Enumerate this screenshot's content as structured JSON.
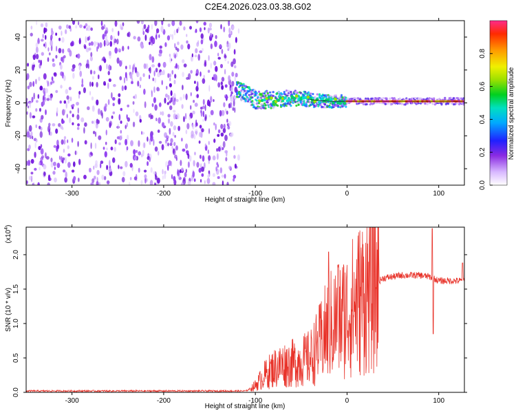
{
  "title": "C2E4.2026.023.03.38.G02",
  "colors": {
    "snr_line": "#e8332a",
    "spectrogram_noise": "#7a1fe0",
    "spectrogram_peak": "#ff1a3c",
    "axis": "#000000"
  },
  "chart_data": [
    {
      "type": "heatmap",
      "name": "spectrogram",
      "xlabel": "Height of straight line (km)",
      "ylabel": "Frequency (Hz)",
      "xlim": [
        -350,
        128
      ],
      "ylim": [
        -50,
        50
      ],
      "xticks": [
        -300,
        -200,
        -100,
        0,
        100
      ],
      "yticks": [
        -40,
        -20,
        0,
        20,
        40
      ],
      "noise_region_x": [
        -350,
        -118
      ],
      "signal_track": [
        {
          "x": -120,
          "y": 8
        },
        {
          "x": -100,
          "y": 2
        },
        {
          "x": -80,
          "y": 2
        },
        {
          "x": -60,
          "y": 3
        },
        {
          "x": -40,
          "y": 2
        },
        {
          "x": -20,
          "y": 1
        },
        {
          "x": 0,
          "y": 1
        },
        {
          "x": 40,
          "y": 1
        },
        {
          "x": 80,
          "y": 1
        },
        {
          "x": 128,
          "y": 1
        }
      ],
      "colorbar": {
        "label": "Normalized spectral amplitude",
        "ticks": [
          "0.0",
          "0.2",
          "0.4",
          "0.6",
          "0.8"
        ],
        "range": [
          0,
          1
        ]
      }
    },
    {
      "type": "line",
      "name": "snr",
      "xlabel": "Height of straight line (km)",
      "ylabel": "SNR (10 * v/v)",
      "y_exponent": "(x10",
      "y_exponent_power": "4",
      "y_exponent_close": ")",
      "xlim": [
        -350,
        128
      ],
      "ylim": [
        0,
        2.4
      ],
      "xticks": [
        -300,
        -200,
        -100,
        0,
        100
      ],
      "yticks": [
        "0.0",
        "0.5",
        "1.0",
        "1.5",
        "2.0"
      ],
      "envelope": [
        {
          "x": -350,
          "y": 0.02
        },
        {
          "x": -110,
          "y": 0.02
        },
        {
          "x": -100,
          "y": 0.1
        },
        {
          "x": -90,
          "y": 0.25
        },
        {
          "x": -80,
          "y": 0.35
        },
        {
          "x": -70,
          "y": 0.4
        },
        {
          "x": -60,
          "y": 0.42
        },
        {
          "x": -50,
          "y": 0.45
        },
        {
          "x": -40,
          "y": 0.5
        },
        {
          "x": -30,
          "y": 0.7
        },
        {
          "x": -20,
          "y": 0.95
        },
        {
          "x": -10,
          "y": 1.05
        },
        {
          "x": 0,
          "y": 1.15
        },
        {
          "x": 10,
          "y": 1.3
        },
        {
          "x": 20,
          "y": 1.45
        },
        {
          "x": 30,
          "y": 1.58
        },
        {
          "x": 40,
          "y": 1.66
        },
        {
          "x": 60,
          "y": 1.7
        },
        {
          "x": 80,
          "y": 1.7
        },
        {
          "x": 90,
          "y": 1.68
        },
        {
          "x": 100,
          "y": 1.62
        },
        {
          "x": 128,
          "y": 1.62
        }
      ],
      "spikes": [
        {
          "x": -20,
          "y": 2.04
        },
        {
          "x": -10,
          "y": 1.85
        },
        {
          "x": 93,
          "y": 2.38
        },
        {
          "x": 94,
          "y": 0.85
        },
        {
          "x": 126,
          "y": 1.88
        }
      ]
    }
  ]
}
